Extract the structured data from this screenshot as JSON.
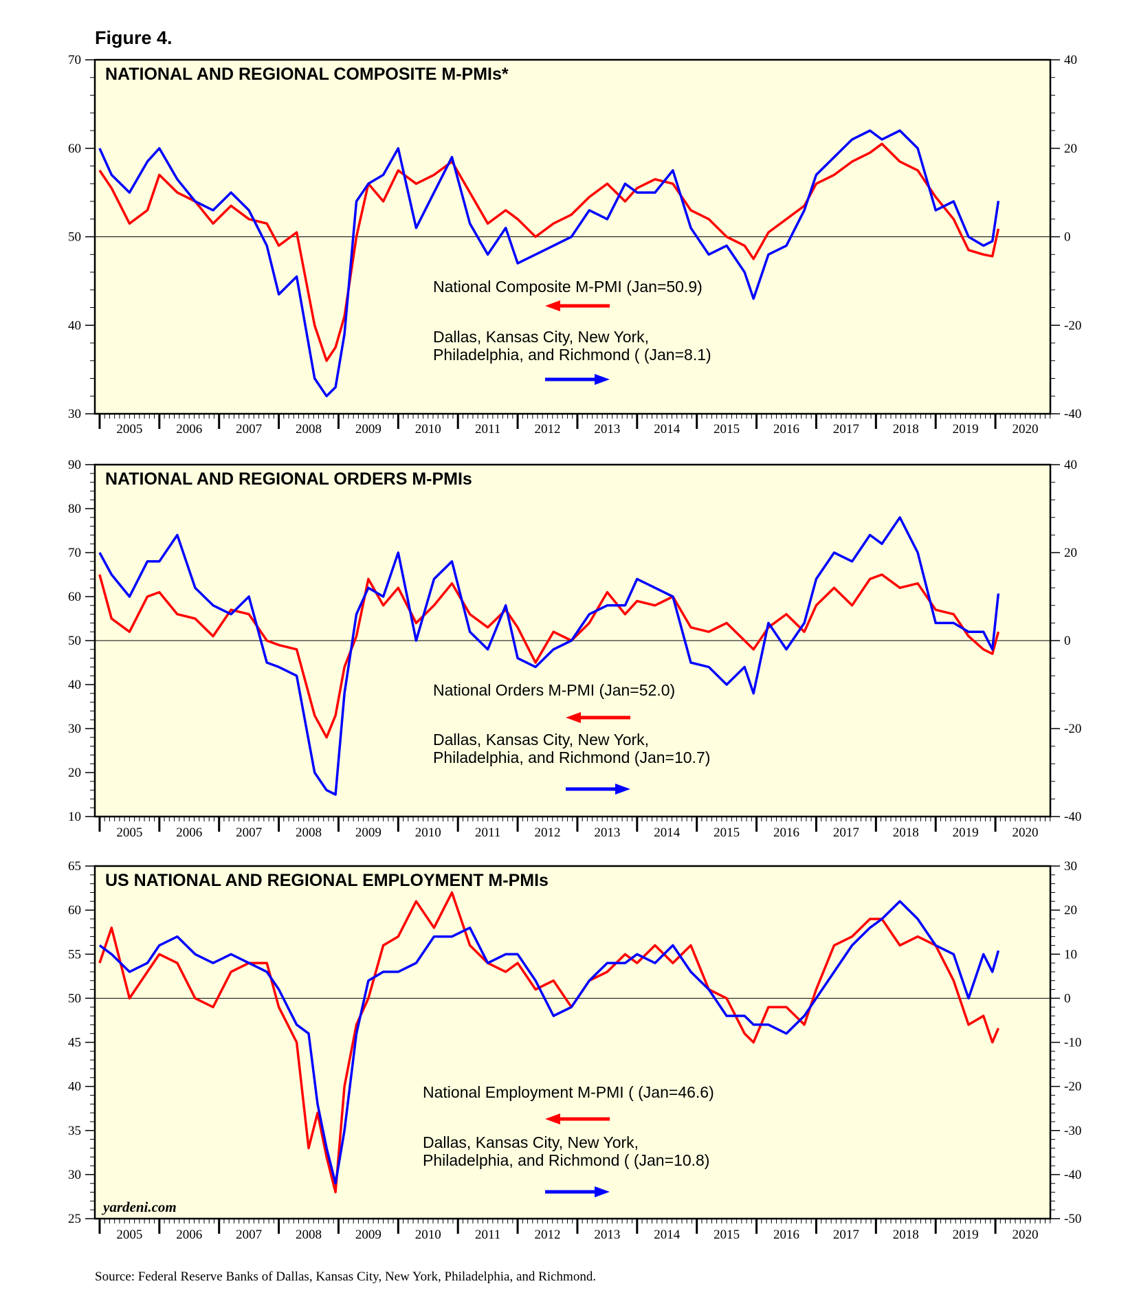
{
  "figure_label": "Figure 4.",
  "source": "Source: Federal Reserve Banks of Dallas, Kansas City, New York, Philadelphia, and Richmond.",
  "watermark": "yardeni.com",
  "colors": {
    "background": "#ffffe0",
    "national": "#ff0000",
    "regional": "#0000ff",
    "axis": "#000000"
  },
  "chart_data": [
    {
      "type": "line",
      "title": "NATIONAL AND REGIONAL COMPOSITE M-PMIs*",
      "xlabels": [
        "2005",
        "2006",
        "2007",
        "2008",
        "2009",
        "2010",
        "2011",
        "2012",
        "2013",
        "2014",
        "2015",
        "2016",
        "2017",
        "2018",
        "2019",
        "2020"
      ],
      "x_range": [
        2004.92,
        2020.92
      ],
      "ylim_left": [
        30,
        70
      ],
      "yticks_left": [
        30,
        40,
        50,
        60,
        70
      ],
      "ylim_right": [
        -40,
        40
      ],
      "yticks_right": [
        -40,
        -20,
        0,
        20,
        40
      ],
      "reference_line": 50,
      "series": [
        {
          "name": "National Composite M-PMI (Jan=50.9)",
          "axis": "left",
          "color": "#ff0000",
          "arrow": "left",
          "x": [
            2005.0,
            2005.2,
            2005.5,
            2005.8,
            2006.0,
            2006.3,
            2006.6,
            2006.9,
            2007.2,
            2007.5,
            2007.8,
            2008.0,
            2008.3,
            2008.6,
            2008.8,
            2008.95,
            2009.1,
            2009.3,
            2009.5,
            2009.75,
            2010.0,
            2010.3,
            2010.6,
            2010.9,
            2011.2,
            2011.5,
            2011.8,
            2012.0,
            2012.3,
            2012.6,
            2012.9,
            2013.2,
            2013.5,
            2013.8,
            2014.0,
            2014.3,
            2014.6,
            2014.9,
            2015.2,
            2015.5,
            2015.8,
            2015.95,
            2016.2,
            2016.5,
            2016.8,
            2017.0,
            2017.3,
            2017.6,
            2017.9,
            2018.1,
            2018.4,
            2018.7,
            2019.0,
            2019.3,
            2019.55,
            2019.8,
            2019.95,
            2020.05
          ],
          "y": [
            57.5,
            55.5,
            51.5,
            53.0,
            57.0,
            55.0,
            54.0,
            51.5,
            53.5,
            52.0,
            51.5,
            49.0,
            50.5,
            40.0,
            36.0,
            37.5,
            41.0,
            50.0,
            56.0,
            54.0,
            57.5,
            56.0,
            57.0,
            58.5,
            55.0,
            51.5,
            53.0,
            52.0,
            50.0,
            51.5,
            52.5,
            54.5,
            56.0,
            54.0,
            55.5,
            56.5,
            56.0,
            53.0,
            52.0,
            50.0,
            49.0,
            47.5,
            50.5,
            52.0,
            53.5,
            56.0,
            57.0,
            58.5,
            59.5,
            60.5,
            58.5,
            57.5,
            54.5,
            52.0,
            48.5,
            48.0,
            47.8,
            50.9
          ]
        },
        {
          "name": "Dallas, Kansas City, New York, Philadelphia, and Richmond ( (Jan=8.1)",
          "axis": "right",
          "color": "#0000ff",
          "arrow": "right",
          "x": [
            2005.0,
            2005.2,
            2005.5,
            2005.8,
            2006.0,
            2006.3,
            2006.6,
            2006.9,
            2007.2,
            2007.5,
            2007.8,
            2008.0,
            2008.3,
            2008.6,
            2008.8,
            2008.95,
            2009.1,
            2009.3,
            2009.5,
            2009.75,
            2010.0,
            2010.3,
            2010.6,
            2010.9,
            2011.2,
            2011.5,
            2011.8,
            2012.0,
            2012.3,
            2012.6,
            2012.9,
            2013.2,
            2013.5,
            2013.8,
            2014.0,
            2014.3,
            2014.6,
            2014.9,
            2015.2,
            2015.5,
            2015.8,
            2015.95,
            2016.2,
            2016.5,
            2016.8,
            2017.0,
            2017.3,
            2017.6,
            2017.9,
            2018.1,
            2018.4,
            2018.7,
            2019.0,
            2019.3,
            2019.55,
            2019.8,
            2019.95,
            2020.05
          ],
          "y": [
            20,
            14,
            10,
            17,
            20,
            13,
            8,
            6,
            10,
            6,
            -2,
            -13,
            -9,
            -32,
            -36,
            -34,
            -22,
            8,
            12,
            14,
            20,
            2,
            10,
            18,
            3,
            -4,
            2,
            -6,
            -4,
            -2,
            0,
            6,
            4,
            12,
            10,
            10,
            15,
            2,
            -4,
            -2,
            -8,
            -14,
            -4,
            -2,
            6,
            14,
            18,
            22,
            24,
            22,
            24,
            20,
            6,
            8,
            0,
            -2,
            -1,
            8.1
          ]
        }
      ],
      "annotations": {
        "national": "National Composite M-PMI (Jan=50.9)",
        "regional_line1": "Dallas, Kansas City, New York,",
        "regional_line2": "Philadelphia, and Richmond ( (Jan=8.1)"
      }
    },
    {
      "type": "line",
      "title": "NATIONAL AND REGIONAL ORDERS M-PMIs",
      "xlabels": [
        "2005",
        "2006",
        "2007",
        "2008",
        "2009",
        "2010",
        "2011",
        "2012",
        "2013",
        "2014",
        "2015",
        "2016",
        "2017",
        "2018",
        "2019",
        "2020"
      ],
      "x_range": [
        2004.92,
        2020.92
      ],
      "ylim_left": [
        10,
        90
      ],
      "yticks_left": [
        10,
        20,
        30,
        40,
        50,
        60,
        70,
        80,
        90
      ],
      "ylim_right": [
        -40,
        40
      ],
      "yticks_right": [
        -40,
        -20,
        0,
        20,
        40
      ],
      "reference_line": 50,
      "series": [
        {
          "name": "National Orders M-PMI (Jan=52.0)",
          "axis": "left",
          "color": "#ff0000",
          "arrow": "left",
          "x": [
            2005.0,
            2005.2,
            2005.5,
            2005.8,
            2006.0,
            2006.3,
            2006.6,
            2006.9,
            2007.2,
            2007.5,
            2007.8,
            2008.0,
            2008.3,
            2008.6,
            2008.8,
            2008.95,
            2009.1,
            2009.3,
            2009.5,
            2009.75,
            2010.0,
            2010.3,
            2010.6,
            2010.9,
            2011.2,
            2011.5,
            2011.8,
            2012.0,
            2012.3,
            2012.6,
            2012.9,
            2013.2,
            2013.5,
            2013.8,
            2014.0,
            2014.3,
            2014.6,
            2014.9,
            2015.2,
            2015.5,
            2015.8,
            2015.95,
            2016.2,
            2016.5,
            2016.8,
            2017.0,
            2017.3,
            2017.6,
            2017.9,
            2018.1,
            2018.4,
            2018.7,
            2019.0,
            2019.3,
            2019.55,
            2019.8,
            2019.95,
            2020.05
          ],
          "y": [
            65,
            55,
            52,
            60,
            61,
            56,
            55,
            51,
            57,
            56,
            50,
            49,
            48,
            33,
            28,
            33,
            44,
            51,
            64,
            58,
            62,
            54,
            58,
            63,
            56,
            53,
            57,
            53,
            45,
            52,
            50,
            54,
            61,
            56,
            59,
            58,
            60,
            53,
            52,
            54,
            50,
            48,
            53,
            56,
            52,
            58,
            62,
            58,
            64,
            65,
            62,
            63,
            57,
            56,
            51,
            48,
            47,
            52.0
          ]
        },
        {
          "name": "Dallas, Kansas City, New York, Philadelphia, and Richmond (Jan=10.7)",
          "axis": "right",
          "color": "#0000ff",
          "arrow": "right",
          "x": [
            2005.0,
            2005.2,
            2005.5,
            2005.8,
            2006.0,
            2006.3,
            2006.6,
            2006.9,
            2007.2,
            2007.5,
            2007.8,
            2008.0,
            2008.3,
            2008.6,
            2008.8,
            2008.95,
            2009.1,
            2009.3,
            2009.5,
            2009.75,
            2010.0,
            2010.3,
            2010.6,
            2010.9,
            2011.2,
            2011.5,
            2011.8,
            2012.0,
            2012.3,
            2012.6,
            2012.9,
            2013.2,
            2013.5,
            2013.8,
            2014.0,
            2014.3,
            2014.6,
            2014.9,
            2015.2,
            2015.5,
            2015.8,
            2015.95,
            2016.2,
            2016.5,
            2016.8,
            2017.0,
            2017.3,
            2017.6,
            2017.9,
            2018.1,
            2018.4,
            2018.7,
            2019.0,
            2019.3,
            2019.55,
            2019.8,
            2019.95,
            2020.05
          ],
          "y": [
            20,
            15,
            10,
            18,
            18,
            24,
            12,
            8,
            6,
            10,
            -5,
            -6,
            -8,
            -30,
            -34,
            -35,
            -12,
            6,
            12,
            10,
            20,
            0,
            14,
            18,
            2,
            -2,
            8,
            -4,
            -6,
            -2,
            0,
            6,
            8,
            8,
            14,
            12,
            10,
            -5,
            -6,
            -10,
            -6,
            -12,
            4,
            -2,
            4,
            14,
            20,
            18,
            24,
            22,
            28,
            20,
            4,
            4,
            2,
            2,
            -2,
            10.7
          ]
        }
      ],
      "annotations": {
        "national": "National Orders M-PMI (Jan=52.0)",
        "regional_line1": "Dallas, Kansas City, New York,",
        "regional_line2": "Philadelphia, and Richmond (Jan=10.7)"
      }
    },
    {
      "type": "line",
      "title": "US NATIONAL AND REGIONAL EMPLOYMENT M-PMIs",
      "xlabels": [
        "2005",
        "2006",
        "2007",
        "2008",
        "2009",
        "2010",
        "2011",
        "2012",
        "2013",
        "2014",
        "2015",
        "2016",
        "2017",
        "2018",
        "2019",
        "2020"
      ],
      "x_range": [
        2004.92,
        2020.92
      ],
      "ylim_left": [
        25,
        65
      ],
      "yticks_left": [
        25,
        30,
        35,
        40,
        45,
        50,
        55,
        60,
        65
      ],
      "ylim_right": [
        -50,
        30
      ],
      "yticks_right": [
        -50,
        -40,
        -30,
        -20,
        -10,
        0,
        10,
        20,
        30
      ],
      "reference_line": 50,
      "series": [
        {
          "name": "National Employment M-PMI ( (Jan=46.6)",
          "axis": "left",
          "color": "#ff0000",
          "arrow": "left",
          "x": [
            2005.0,
            2005.2,
            2005.5,
            2005.8,
            2006.0,
            2006.3,
            2006.6,
            2006.9,
            2007.2,
            2007.5,
            2007.8,
            2008.0,
            2008.3,
            2008.5,
            2008.65,
            2008.8,
            2008.95,
            2009.1,
            2009.3,
            2009.5,
            2009.75,
            2010.0,
            2010.3,
            2010.6,
            2010.9,
            2011.2,
            2011.5,
            2011.8,
            2012.0,
            2012.3,
            2012.6,
            2012.9,
            2013.2,
            2013.5,
            2013.8,
            2014.0,
            2014.3,
            2014.6,
            2014.9,
            2015.2,
            2015.5,
            2015.8,
            2015.95,
            2016.2,
            2016.5,
            2016.8,
            2017.0,
            2017.3,
            2017.6,
            2017.9,
            2018.1,
            2018.4,
            2018.7,
            2019.0,
            2019.3,
            2019.55,
            2019.8,
            2019.95,
            2020.05
          ],
          "y": [
            54,
            58,
            50,
            53,
            55,
            54,
            50,
            49,
            53,
            54,
            54,
            49,
            45,
            33,
            37,
            32,
            28,
            40,
            47,
            50,
            56,
            57,
            61,
            58,
            62,
            56,
            54,
            53,
            54,
            51,
            52,
            49,
            52,
            53,
            55,
            54,
            56,
            54,
            56,
            51,
            50,
            46,
            45,
            49,
            49,
            47,
            51,
            56,
            57,
            59,
            59,
            56,
            57,
            56,
            52,
            47,
            48,
            45,
            46.6
          ]
        },
        {
          "name": "Dallas, Kansas City, New York, Philadelphia, and Richmond ( (Jan=10.8)",
          "axis": "right",
          "color": "#0000ff",
          "arrow": "right",
          "x": [
            2005.0,
            2005.2,
            2005.5,
            2005.8,
            2006.0,
            2006.3,
            2006.6,
            2006.9,
            2007.2,
            2007.5,
            2007.8,
            2008.0,
            2008.3,
            2008.5,
            2008.65,
            2008.8,
            2008.95,
            2009.1,
            2009.3,
            2009.5,
            2009.75,
            2010.0,
            2010.3,
            2010.6,
            2010.9,
            2011.2,
            2011.5,
            2011.8,
            2012.0,
            2012.3,
            2012.6,
            2012.9,
            2013.2,
            2013.5,
            2013.8,
            2014.0,
            2014.3,
            2014.6,
            2014.9,
            2015.2,
            2015.5,
            2015.8,
            2015.95,
            2016.2,
            2016.5,
            2016.8,
            2017.0,
            2017.3,
            2017.6,
            2017.9,
            2018.1,
            2018.4,
            2018.7,
            2019.0,
            2019.3,
            2019.55,
            2019.8,
            2019.95,
            2020.05
          ],
          "y": [
            12,
            10,
            6,
            8,
            12,
            14,
            10,
            8,
            10,
            8,
            6,
            2,
            -6,
            -8,
            -24,
            -34,
            -42,
            -30,
            -8,
            4,
            6,
            6,
            8,
            14,
            14,
            16,
            8,
            10,
            10,
            4,
            -4,
            -2,
            4,
            8,
            8,
            10,
            8,
            12,
            6,
            2,
            -4,
            -4,
            -6,
            -6,
            -8,
            -4,
            0,
            6,
            12,
            16,
            18,
            22,
            18,
            12,
            10,
            0,
            10,
            6,
            10.8
          ]
        }
      ],
      "annotations": {
        "national": "National Employment M-PMI ( (Jan=46.6)",
        "regional_line1": "Dallas, Kansas City, New York,",
        "regional_line2": "Philadelphia, and Richmond ( (Jan=10.8)"
      }
    }
  ]
}
